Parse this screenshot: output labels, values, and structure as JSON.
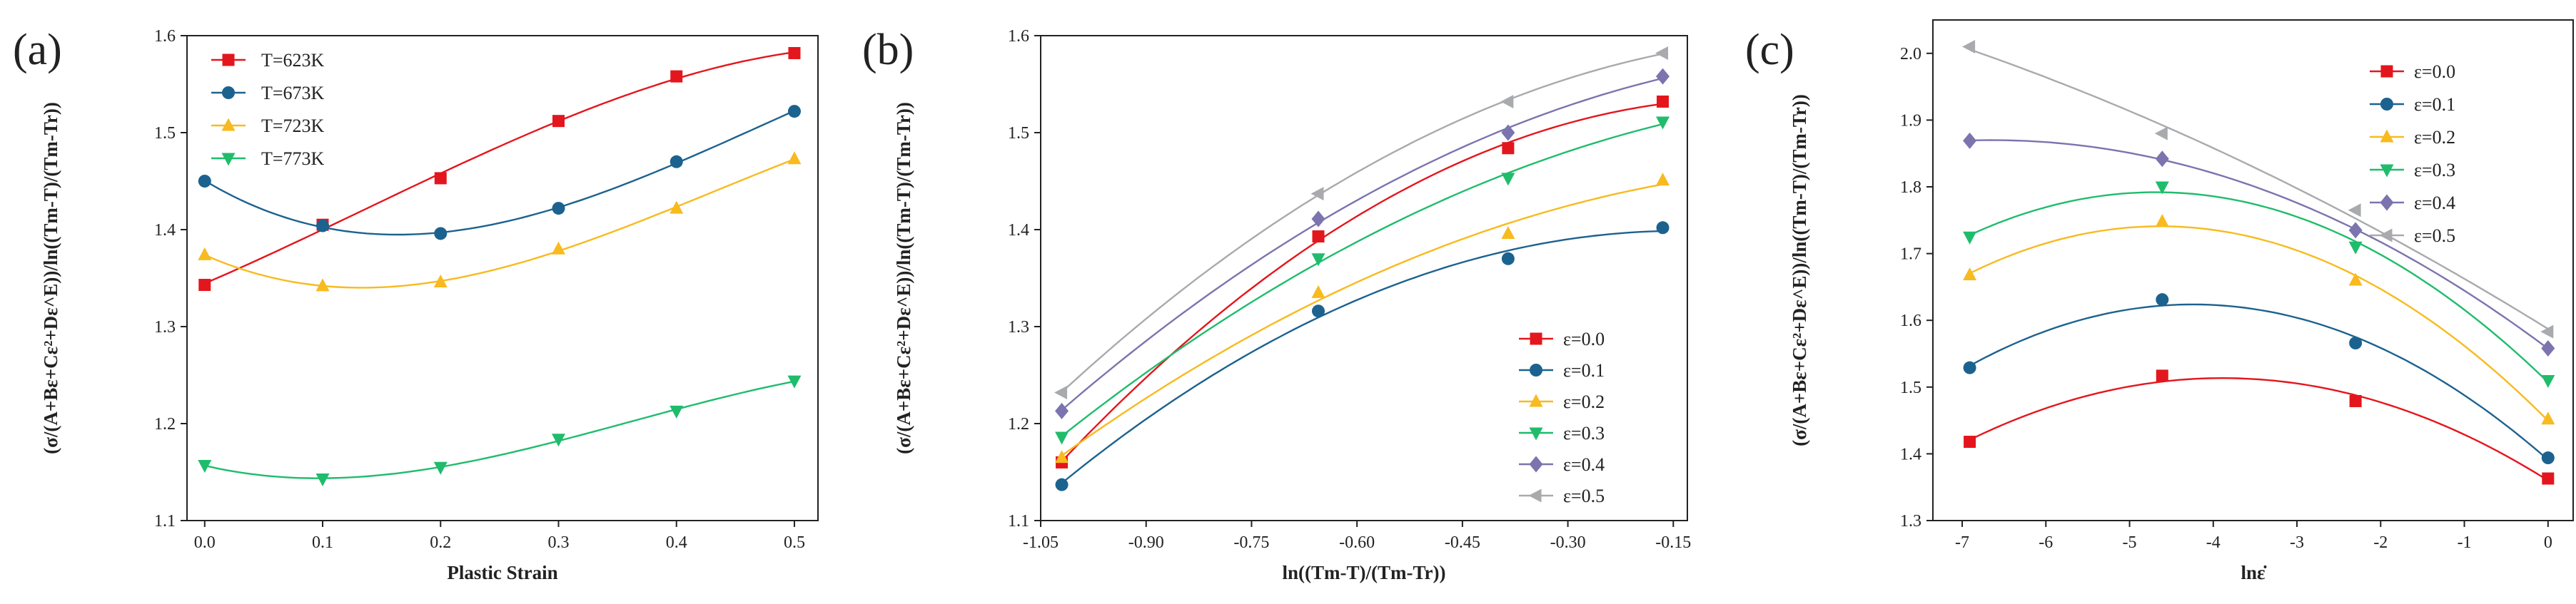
{
  "chart_data": [
    {
      "type": "line",
      "panel_label": "(a)",
      "xlabel": "Plastic Strain",
      "ylabel": "(σ/(A+Bε+Cε²+Dε^E))/ln((Tm-T)/(Tm-Tr))",
      "xlim": [
        -0.015,
        0.52
      ],
      "ylim": [
        1.1,
        1.6
      ],
      "xticks": [
        "0.0",
        "0.1",
        "0.2",
        "0.3",
        "0.4",
        "0.5"
      ],
      "xtick_values": [
        0.0,
        0.1,
        0.2,
        0.3,
        0.4,
        0.5
      ],
      "yticks": [
        "1.1",
        "1.2",
        "1.3",
        "1.4",
        "1.5",
        "1.6"
      ],
      "ytick_values": [
        1.1,
        1.2,
        1.3,
        1.4,
        1.5,
        1.6
      ],
      "legend_position": "top-left",
      "x": [
        0.0,
        0.1,
        0.2,
        0.3,
        0.4,
        0.5
      ],
      "series": [
        {
          "name": "T=623K",
          "color": "#e4161d",
          "marker": "square",
          "values": [
            1.343,
            1.405,
            1.453,
            1.512,
            1.558,
            1.582
          ]
        },
        {
          "name": "T=673K",
          "color": "#1c628f",
          "marker": "circle",
          "values": [
            1.45,
            1.404,
            1.396,
            1.422,
            1.47,
            1.522
          ]
        },
        {
          "name": "T=723K",
          "color": "#f8ba1e",
          "marker": "triangle-up",
          "values": [
            1.374,
            1.342,
            1.346,
            1.38,
            1.422,
            1.473
          ]
        },
        {
          "name": "T=773K",
          "color": "#1fbc6c",
          "marker": "triangle-down",
          "values": [
            1.157,
            1.143,
            1.155,
            1.184,
            1.213,
            1.244
          ]
        }
      ]
    },
    {
      "type": "line",
      "panel_label": "(b)",
      "xlabel": "ln((Tm-T)/(Tm-Tr))",
      "ylabel": "(σ/(A+Bε+Cε²+Dε^E))/ln((Tm-T)/(Tm-Tr))",
      "xlim": [
        -1.05,
        -0.13
      ],
      "ylim": [
        1.1,
        1.6
      ],
      "xticks": [
        "-1.05",
        "-0.90",
        "-0.75",
        "-0.60",
        "-0.45",
        "-0.30",
        "-0.15"
      ],
      "xtick_values": [
        -1.05,
        -0.9,
        -0.75,
        -0.6,
        -0.45,
        -0.3,
        -0.15
      ],
      "yticks": [
        "1.1",
        "1.2",
        "1.3",
        "1.4",
        "1.5",
        "1.6"
      ],
      "ytick_values": [
        1.1,
        1.2,
        1.3,
        1.4,
        1.5,
        1.6
      ],
      "legend_position": "bottom-right",
      "x": [
        -1.02,
        -0.655,
        -0.385,
        -0.165
      ],
      "series": [
        {
          "name": "ε=0.0",
          "color": "#e4161d",
          "marker": "square",
          "values": [
            1.16,
            1.393,
            1.484,
            1.532
          ]
        },
        {
          "name": "ε=0.1",
          "color": "#1c628f",
          "marker": "circle",
          "values": [
            1.137,
            1.316,
            1.37,
            1.402
          ]
        },
        {
          "name": "ε=0.2",
          "color": "#f8ba1e",
          "marker": "triangle-up",
          "values": [
            1.165,
            1.335,
            1.396,
            1.451
          ]
        },
        {
          "name": "ε=0.3",
          "color": "#1fbc6c",
          "marker": "triangle-down",
          "values": [
            1.186,
            1.37,
            1.453,
            1.511
          ]
        },
        {
          "name": "ε=0.4",
          "color": "#7b74ae",
          "marker": "diamond",
          "values": [
            1.213,
            1.411,
            1.5,
            1.558
          ]
        },
        {
          "name": "ε=0.5",
          "color": "#a9aaad",
          "marker": "triangle-left",
          "values": [
            1.232,
            1.437,
            1.532,
            1.582
          ]
        }
      ]
    },
    {
      "type": "line",
      "panel_label": "(c)",
      "xlabel": "lnε̇",
      "ylabel": "(σ/(A+Bε+Cε²+Dε^E))/ln((Tm-T)/(Tm-Tr))",
      "xlim": [
        -7.35,
        0.3
      ],
      "ylim": [
        1.3,
        2.05
      ],
      "xticks": [
        "-7",
        "-6",
        "-5",
        "-4",
        "-3",
        "-2",
        "-1",
        "0"
      ],
      "xtick_values": [
        -7,
        -6,
        -5,
        -4,
        -3,
        -2,
        -1,
        0
      ],
      "yticks": [
        "1.3",
        "1.4",
        "1.5",
        "1.6",
        "1.7",
        "1.8",
        "1.9",
        "2.0"
      ],
      "ytick_values": [
        1.3,
        1.4,
        1.5,
        1.6,
        1.7,
        1.8,
        1.9,
        2.0
      ],
      "legend_position": "top-right",
      "x": [
        -6.91,
        -4.61,
        -2.3,
        0.0
      ],
      "series": [
        {
          "name": "ε=0.0",
          "color": "#e4161d",
          "marker": "square",
          "values": [
            1.418,
            1.517,
            1.479,
            1.363
          ]
        },
        {
          "name": "ε=0.1",
          "color": "#1c628f",
          "marker": "circle",
          "values": [
            1.529,
            1.631,
            1.566,
            1.394
          ]
        },
        {
          "name": "ε=0.2",
          "color": "#f8ba1e",
          "marker": "triangle-up",
          "values": [
            1.668,
            1.748,
            1.66,
            1.452
          ]
        },
        {
          "name": "ε=0.3",
          "color": "#1fbc6c",
          "marker": "triangle-down",
          "values": [
            1.725,
            1.8,
            1.71,
            1.51
          ]
        },
        {
          "name": "ε=0.4",
          "color": "#7b74ae",
          "marker": "diamond",
          "values": [
            1.869,
            1.842,
            1.735,
            1.558
          ]
        },
        {
          "name": "ε=0.5",
          "color": "#a9aaad",
          "marker": "triangle-left",
          "values": [
            2.01,
            1.88,
            1.765,
            1.583
          ]
        }
      ]
    }
  ]
}
